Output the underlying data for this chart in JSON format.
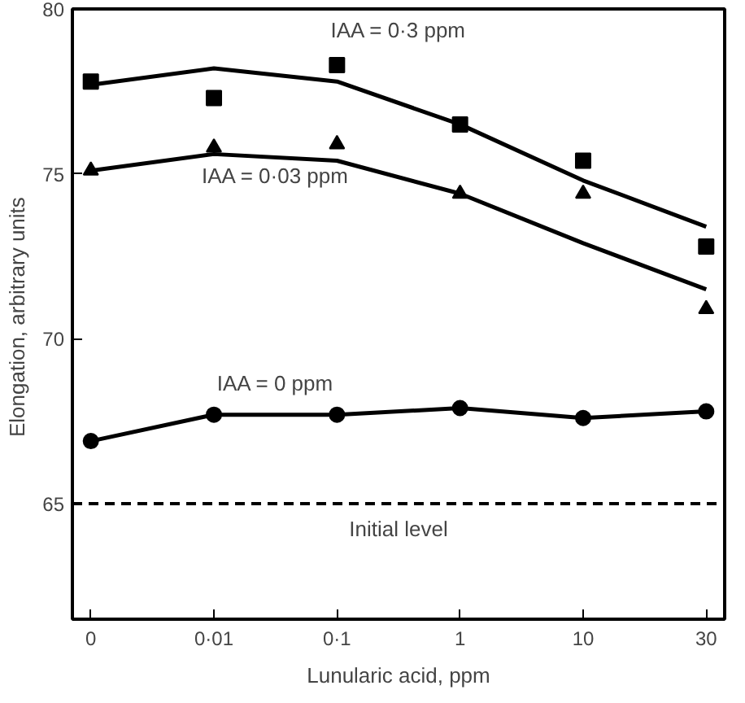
{
  "chart_data": {
    "type": "line",
    "xlabel": "Lunularic acid, ppm",
    "ylabel": "Elongation,  arbitrary units",
    "categories": [
      "0",
      "0·01",
      "0·1",
      "1",
      "10",
      "30"
    ],
    "series": [
      {
        "name": "IAA = 0·3 ppm",
        "type": "scatter",
        "marker": "square",
        "color": "#000000",
        "values": [
          77.8,
          77.3,
          78.3,
          76.5,
          75.4,
          72.8
        ]
      },
      {
        "marker": "none",
        "color": "#000000",
        "values": [
          77.7,
          78.2,
          77.8,
          76.5,
          74.8,
          73.4
        ]
      },
      {
        "name": "IAA = 0·03 ppm",
        "type": "scatter",
        "marker": "triangle",
        "color": "#000000",
        "values": [
          75.1,
          75.8,
          75.9,
          74.4,
          74.4,
          70.9
        ]
      },
      {
        "marker": "none",
        "color": "#000000",
        "values": [
          75.1,
          75.6,
          75.4,
          74.4,
          72.9,
          71.5
        ]
      },
      {
        "name": "IAA = 0 ppm",
        "marker": "circle",
        "color": "#000000",
        "values": [
          66.9,
          67.7,
          67.7,
          67.9,
          67.6,
          67.8
        ]
      }
    ],
    "ylim": [
      61.5,
      80
    ],
    "yticks": [
      65,
      70,
      75,
      80
    ],
    "grid": false,
    "ref_lines": [
      {
        "axis": "y",
        "value": 65,
        "label": "Initial level",
        "line_style": "dashed",
        "color": "#000000"
      }
    ]
  }
}
